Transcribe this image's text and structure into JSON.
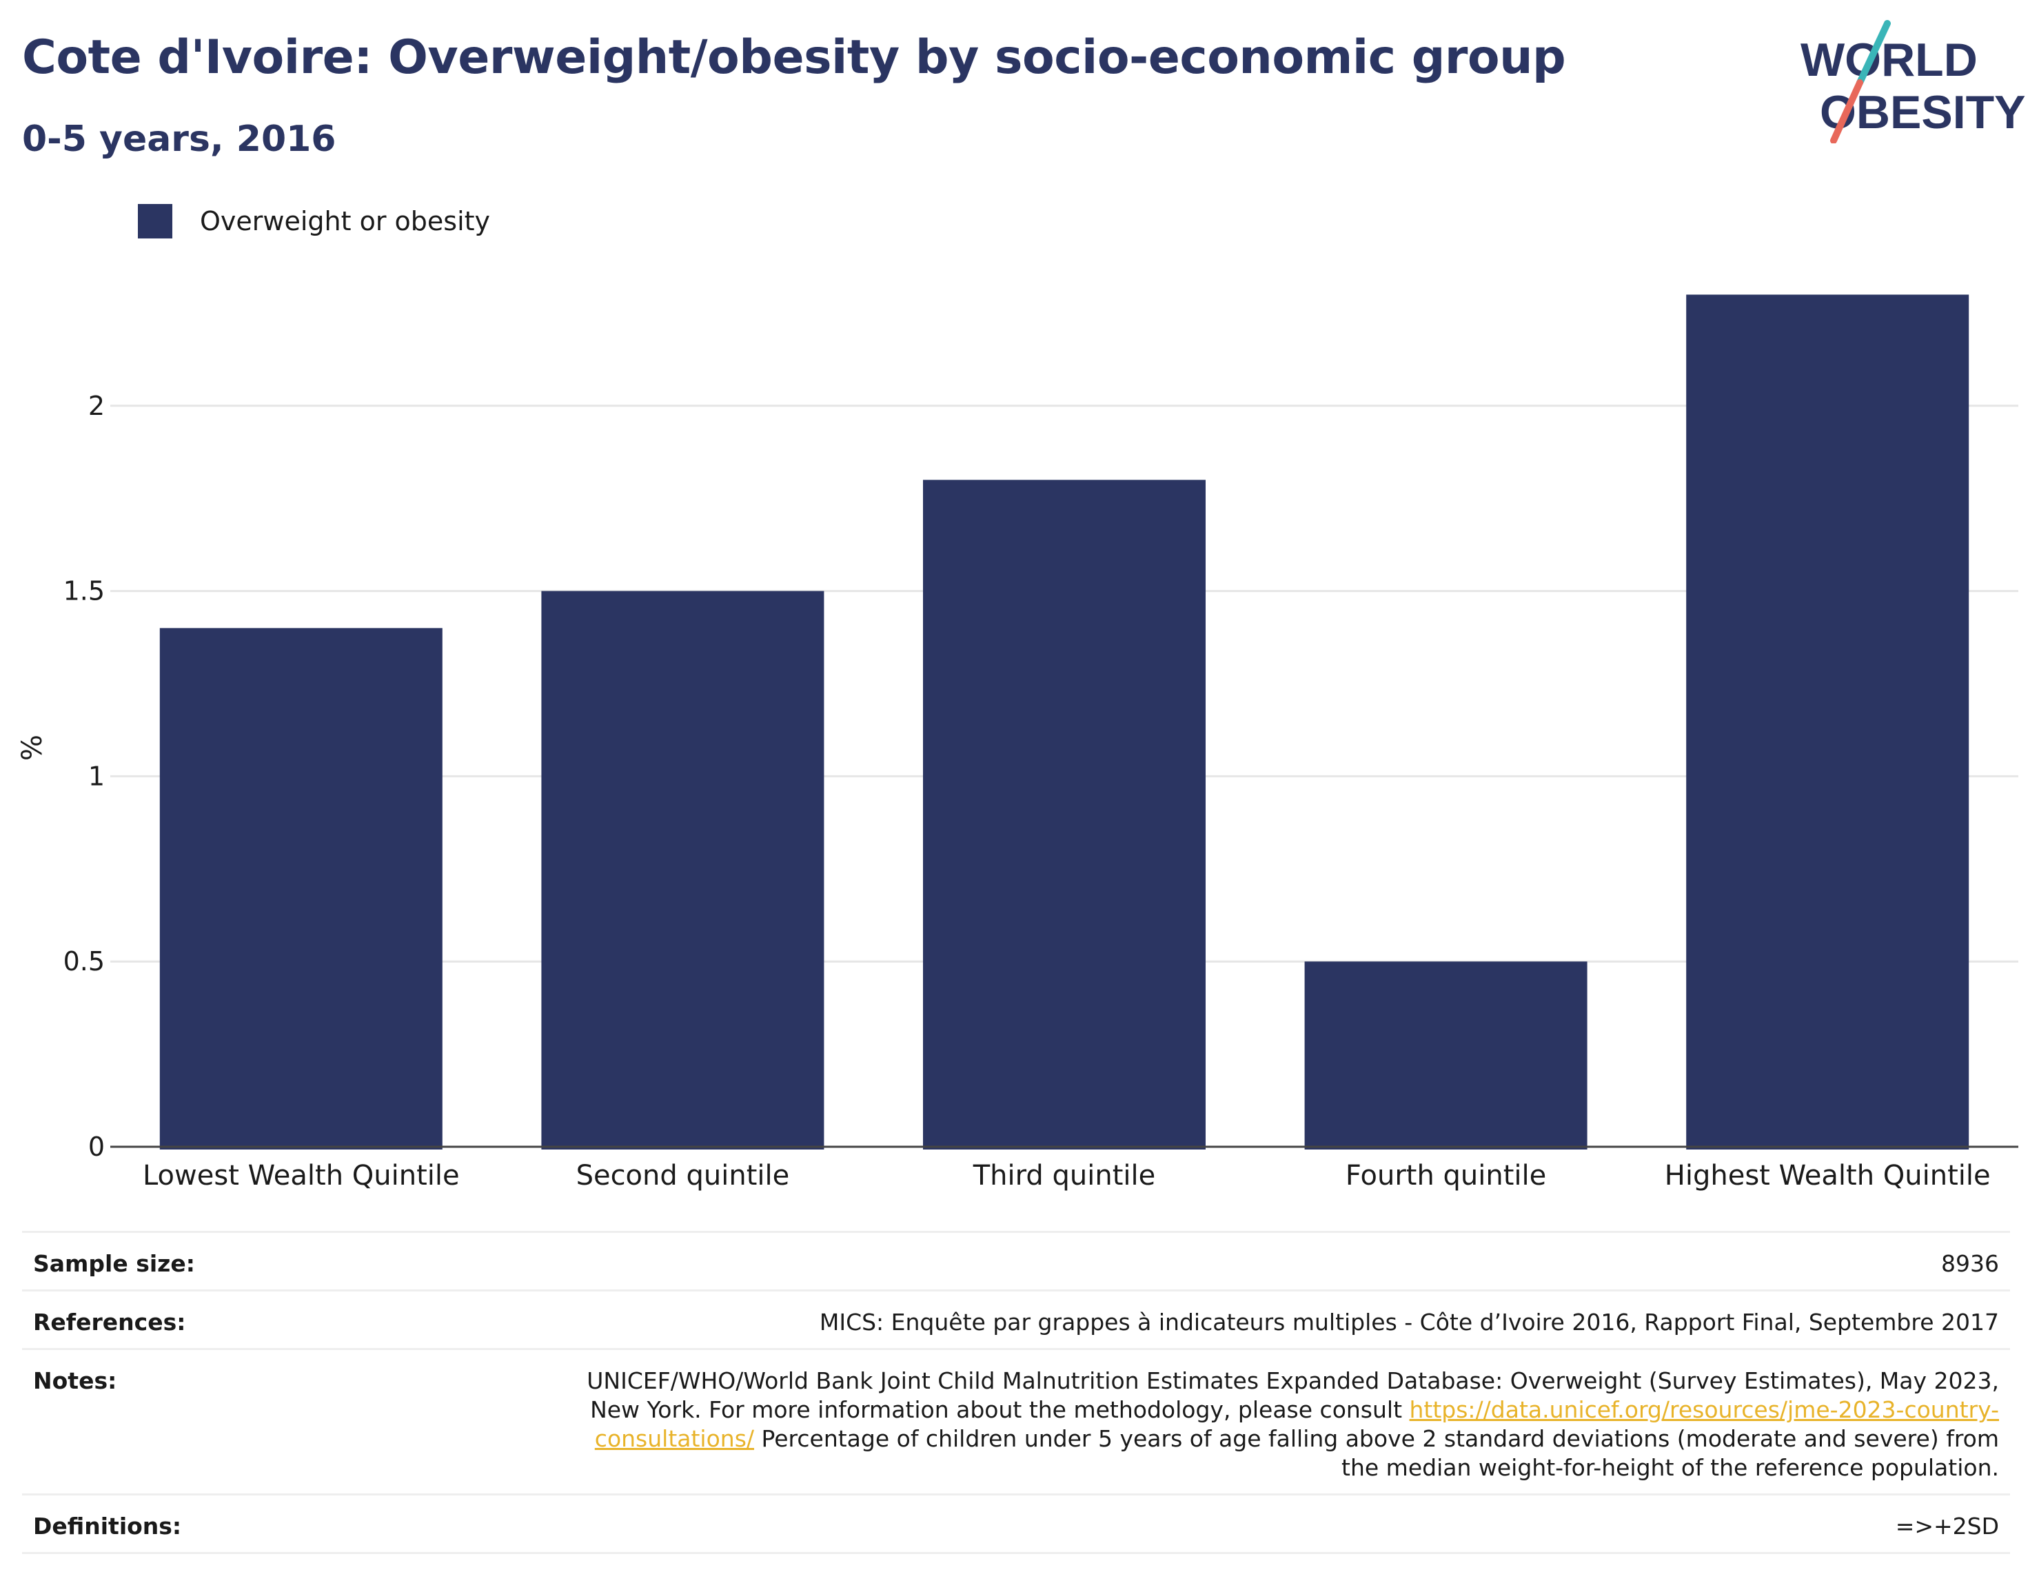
{
  "header": {
    "title": "Cote d'Ivoire: Overweight/obesity by socio-economic group",
    "subtitle": "0-5 years, 2016"
  },
  "logo": {
    "line1": "WORLD",
    "line2": "OBESITY",
    "colors": {
      "text": "#2b3562",
      "slash_top": "#3ab5b8",
      "slash_bottom": "#e8685a"
    }
  },
  "legend": {
    "items": [
      {
        "label": "Overweight or obesity",
        "color": "#2b3562"
      }
    ]
  },
  "chart_data": {
    "type": "bar",
    "categories": [
      "Lowest Wealth Quintile",
      "Second quintile",
      "Third quintile",
      "Fourth quintile",
      "Highest Wealth Quintile"
    ],
    "series": [
      {
        "name": "Overweight or obesity",
        "values": [
          1.4,
          1.5,
          1.8,
          0.5,
          2.3
        ],
        "color": "#2b3562"
      }
    ],
    "ylabel": "%",
    "xlabel": "",
    "ylim": [
      0,
      2.5
    ],
    "yticks": [
      0,
      0.5,
      1,
      1.5,
      2
    ],
    "ytick_labels": [
      "0",
      "0.5",
      "1",
      "1.5",
      "2"
    ],
    "grid": true,
    "legend_position": "top-left"
  },
  "info": {
    "sample_size": {
      "label": "Sample size:",
      "value": "8936"
    },
    "references": {
      "label": "References:",
      "value": "MICS: Enquête par grappes à indicateurs multiples - Côte d’Ivoire 2016, Rapport Final, Septembre 2017"
    },
    "notes": {
      "label": "Notes:",
      "text_before": "UNICEF/WHO/World Bank Joint Child Malnutrition Estimates Expanded Database: Overweight (Survey Estimates), May 2023, New York. For more information about the methodology, please consult ",
      "link": "https://data.unicef.org/resources/jme-2023-country-consultations/",
      "text_after": " Percentage of children under 5 years of age falling above 2 standard deviations (moderate and severe) from the median weight-for-height of the reference population."
    },
    "definitions": {
      "label": "Definitions:",
      "value": "=>+2SD"
    }
  }
}
